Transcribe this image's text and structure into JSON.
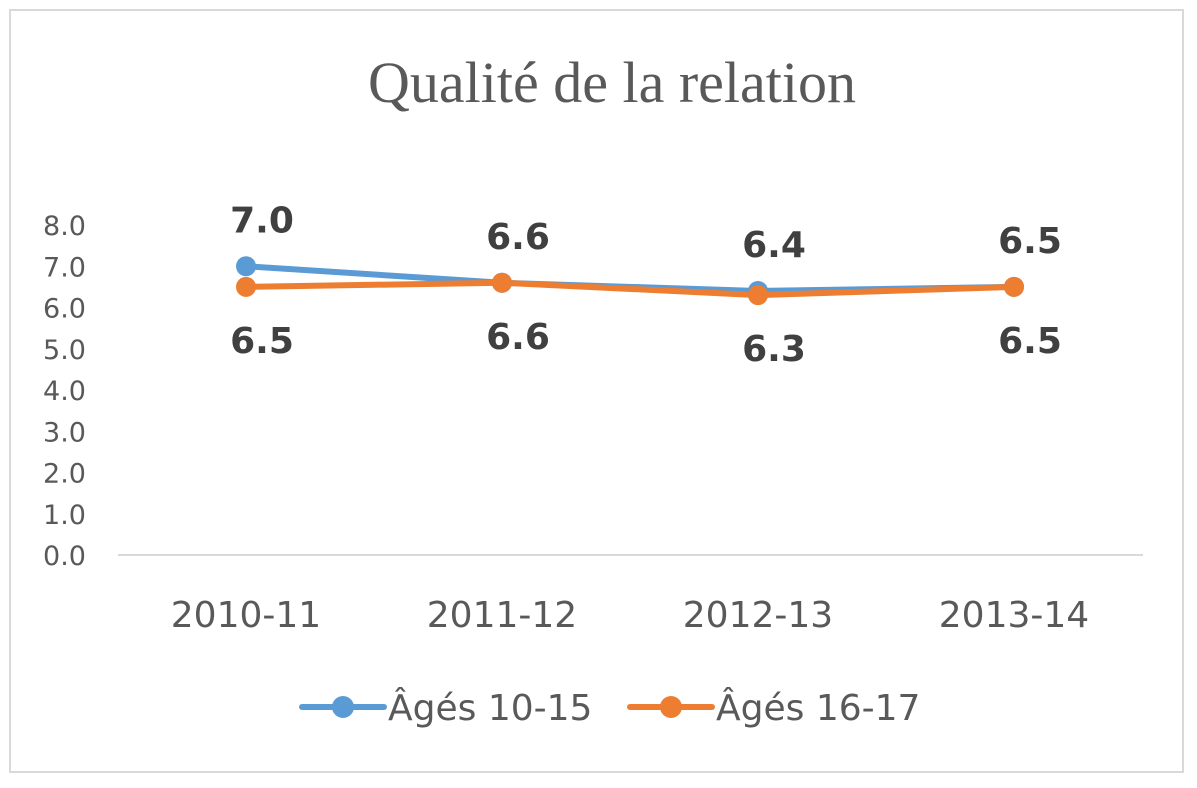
{
  "chart_data": {
    "type": "line",
    "title": "Qualité de la relation",
    "categories": [
      "2010-11",
      "2011-12",
      "2012-13",
      "2013-14"
    ],
    "ylim": [
      0,
      8
    ],
    "yticks": [
      "0.0",
      "1.0",
      "2.0",
      "3.0",
      "4.0",
      "5.0",
      "6.0",
      "7.0",
      "8.0"
    ],
    "grid": false,
    "legend_position": "bottom",
    "series": [
      {
        "name": "Âgés 10-15",
        "values": [
          7.0,
          6.6,
          6.4,
          6.5
        ],
        "labels": [
          "7.0",
          "6.6",
          "6.4",
          "6.5"
        ],
        "color": "#5b9bd5"
      },
      {
        "name": "Âgés 16-17",
        "values": [
          6.5,
          6.6,
          6.3,
          6.5
        ],
        "labels": [
          "6.5",
          "6.6",
          "6.3",
          "6.5"
        ],
        "color": "#ed7d31"
      }
    ]
  }
}
